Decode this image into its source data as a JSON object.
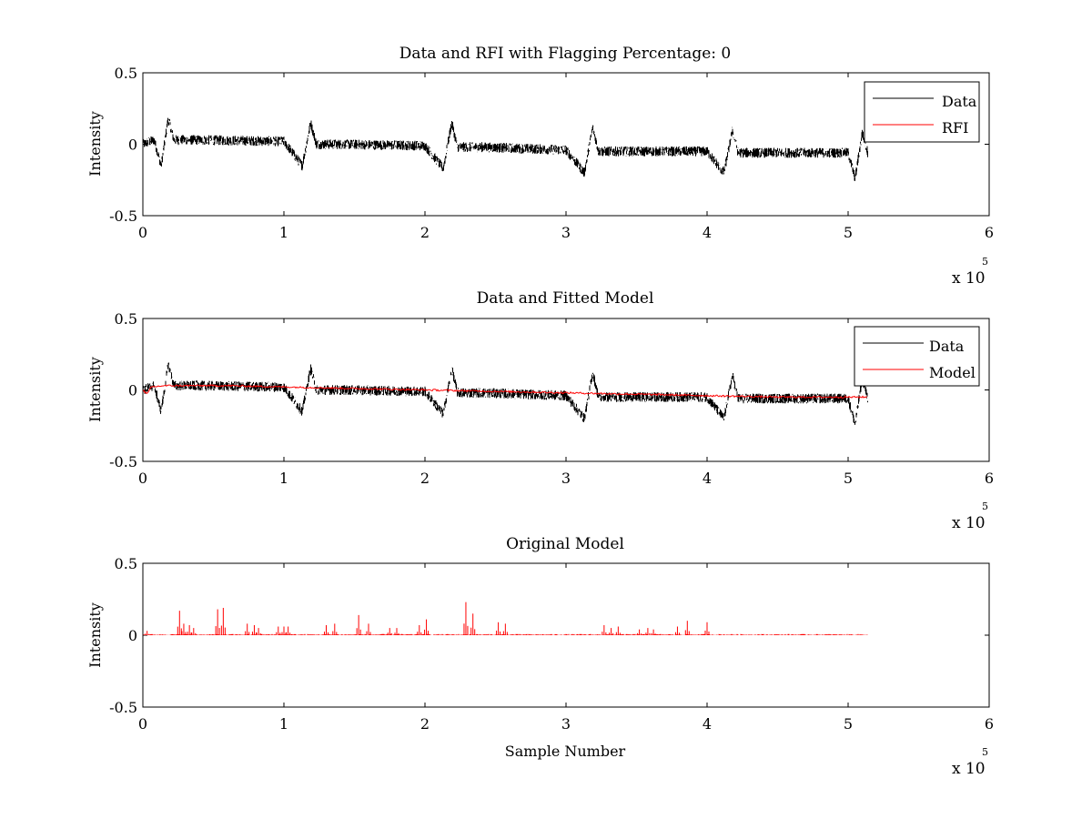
{
  "figure": {
    "background": "#ffffff",
    "colors": {
      "data": "#000000",
      "rfi": "#ff0000",
      "model": "#ff0000",
      "axes": "#000000"
    }
  },
  "chart_data": [
    {
      "type": "line",
      "title": "Data and RFI with Flagging Percentage: 0",
      "xlabel": "",
      "ylabel": "Intensity",
      "xlim": [
        0,
        600000
      ],
      "ylim": [
        -0.5,
        0.5
      ],
      "x_ticks": [
        "0",
        "1",
        "2",
        "3",
        "4",
        "5",
        "6"
      ],
      "y_ticks": [
        "-0.5",
        "0",
        "0.5"
      ],
      "x_multiplier": {
        "base": "x 10",
        "exponent": "5"
      },
      "grid": false,
      "legend": {
        "placement": "top-right",
        "entries": [
          "Data",
          "RFI"
        ]
      },
      "series": [
        {
          "name": "Data",
          "color": "#000000",
          "style": "noisy",
          "noise": 0.035,
          "x": [
            0,
            8000,
            13000,
            18000,
            22000,
            40000,
            100000,
            113000,
            119000,
            123000,
            140000,
            200000,
            213000,
            219000,
            223000,
            240000,
            300000,
            313000,
            319000,
            323000,
            340000,
            400000,
            412000,
            418000,
            422000,
            440000,
            500000,
            505000,
            510000,
            514000
          ],
          "y": [
            0.0,
            0.03,
            -0.15,
            0.18,
            0.03,
            0.03,
            0.02,
            -0.15,
            0.15,
            0.0,
            0.0,
            -0.01,
            -0.17,
            0.15,
            -0.02,
            -0.02,
            -0.04,
            -0.2,
            0.12,
            -0.05,
            -0.05,
            -0.05,
            -0.2,
            0.1,
            -0.06,
            -0.06,
            -0.06,
            -0.24,
            0.08,
            -0.06
          ]
        },
        {
          "name": "RFI",
          "color": "#ff0000",
          "style": "flat",
          "x": [],
          "y": []
        }
      ]
    },
    {
      "type": "line",
      "title": "Data and Fitted Model",
      "xlabel": "",
      "ylabel": "Intensity",
      "xlim": [
        0,
        600000
      ],
      "ylim": [
        -0.5,
        0.5
      ],
      "x_ticks": [
        "0",
        "1",
        "2",
        "3",
        "4",
        "5",
        "6"
      ],
      "y_ticks": [
        "-0.5",
        "0",
        "0.5"
      ],
      "x_multiplier": {
        "base": "x 10",
        "exponent": "5"
      },
      "grid": false,
      "legend": {
        "placement": "top-right",
        "entries": [
          "Data",
          "Model"
        ]
      },
      "series": [
        {
          "name": "Data",
          "color": "#000000",
          "style": "noisy",
          "noise": 0.035,
          "x": [
            0,
            8000,
            13000,
            18000,
            22000,
            40000,
            100000,
            113000,
            119000,
            123000,
            140000,
            200000,
            213000,
            219000,
            223000,
            240000,
            300000,
            313000,
            319000,
            323000,
            340000,
            400000,
            412000,
            418000,
            422000,
            440000,
            500000,
            505000,
            510000,
            514000
          ],
          "y": [
            0.0,
            0.03,
            -0.15,
            0.18,
            0.03,
            0.03,
            0.02,
            -0.15,
            0.15,
            0.0,
            0.0,
            -0.01,
            -0.17,
            0.15,
            -0.02,
            -0.02,
            -0.04,
            -0.2,
            0.12,
            -0.05,
            -0.05,
            -0.05,
            -0.2,
            0.1,
            -0.06,
            -0.06,
            -0.06,
            -0.24,
            0.08,
            -0.06
          ]
        },
        {
          "name": "Model",
          "color": "#ff0000",
          "style": "smooth",
          "noise": 0.006,
          "x": [
            0,
            3000,
            6000,
            15000,
            60000,
            150000,
            250000,
            350000,
            450000,
            514000
          ],
          "y": [
            0.0,
            -0.03,
            0.02,
            0.03,
            0.03,
            0.01,
            -0.01,
            -0.03,
            -0.05,
            -0.05
          ]
        }
      ]
    },
    {
      "type": "line",
      "title": "Original Model",
      "xlabel": "Sample Number",
      "ylabel": "Intensity",
      "xlim": [
        0,
        600000
      ],
      "ylim": [
        -0.5,
        0.5
      ],
      "x_ticks": [
        "0",
        "1",
        "2",
        "3",
        "4",
        "5",
        "6"
      ],
      "y_ticks": [
        "-0.5",
        "0",
        "0.5"
      ],
      "x_multiplier": {
        "base": "x 10",
        "exponent": "5"
      },
      "grid": false,
      "legend": null,
      "series": [
        {
          "name": "",
          "color": "#ff0000",
          "style": "spikes",
          "baseline": 0.0,
          "x_end": 514000,
          "spikes_x": [
            3000,
            26000,
            29000,
            33000,
            36000,
            53000,
            57000,
            74000,
            79000,
            82000,
            96000,
            100000,
            103000,
            130000,
            136000,
            153000,
            160000,
            175000,
            180000,
            196000,
            201000,
            229000,
            234000,
            252000,
            257000,
            327000,
            332000,
            337000,
            352000,
            358000,
            362000,
            379000,
            386000,
            400000
          ],
          "spikes_y": [
            0.03,
            0.17,
            0.08,
            0.07,
            0.05,
            0.18,
            0.19,
            0.08,
            0.07,
            0.05,
            0.06,
            0.06,
            0.06,
            0.07,
            0.08,
            0.14,
            0.08,
            0.05,
            0.05,
            0.07,
            0.11,
            0.23,
            0.15,
            0.09,
            0.08,
            0.07,
            0.05,
            0.06,
            0.04,
            0.05,
            0.04,
            0.06,
            0.1,
            0.09
          ]
        }
      ]
    }
  ]
}
